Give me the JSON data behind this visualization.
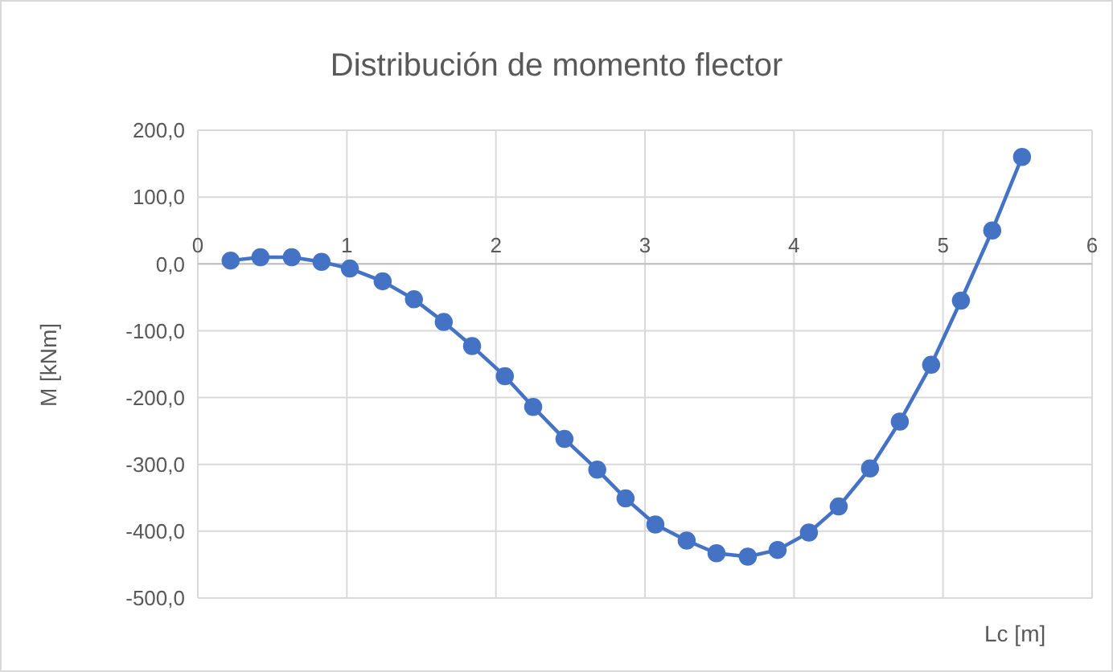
{
  "chart_data": {
    "type": "line",
    "title": "Distribución de momento flector",
    "xlabel": "Lc [m]",
    "ylabel": "M [kNm]",
    "x": [
      0.22,
      0.42,
      0.63,
      0.83,
      1.02,
      1.24,
      1.45,
      1.65,
      1.84,
      2.06,
      2.25,
      2.46,
      2.68,
      2.87,
      3.07,
      3.28,
      3.48,
      3.69,
      3.89,
      4.1,
      4.3,
      4.51,
      4.71,
      4.92,
      5.12,
      5.33,
      5.53
    ],
    "series": [
      {
        "color": "#4472c4",
        "values": [
          5,
          10,
          10,
          3,
          -7,
          -26,
          -53,
          -87,
          -123,
          -168,
          -214,
          -262,
          -308,
          -351,
          -390,
          -414,
          -433,
          -438,
          -428,
          -402,
          -363,
          -306,
          -236,
          -151,
          -55,
          50,
          160
        ]
      }
    ],
    "xlim": [
      0,
      6
    ],
    "xticks": [
      0,
      1,
      2,
      3,
      4,
      5,
      6
    ],
    "ylim": [
      -500,
      200
    ],
    "yticks": [
      {
        "value": -500,
        "label": "-500,0"
      },
      {
        "value": -400,
        "label": "-400,0"
      },
      {
        "value": -300,
        "label": "-300,0"
      },
      {
        "value": -200,
        "label": "-200,0"
      },
      {
        "value": -100,
        "label": "-100,0"
      },
      {
        "value": 0,
        "label": "0,0"
      },
      {
        "value": 100,
        "label": "100,0"
      },
      {
        "value": 200,
        "label": "200,0"
      }
    ],
    "grid": true,
    "marker": "circle",
    "line_style": "solid"
  }
}
